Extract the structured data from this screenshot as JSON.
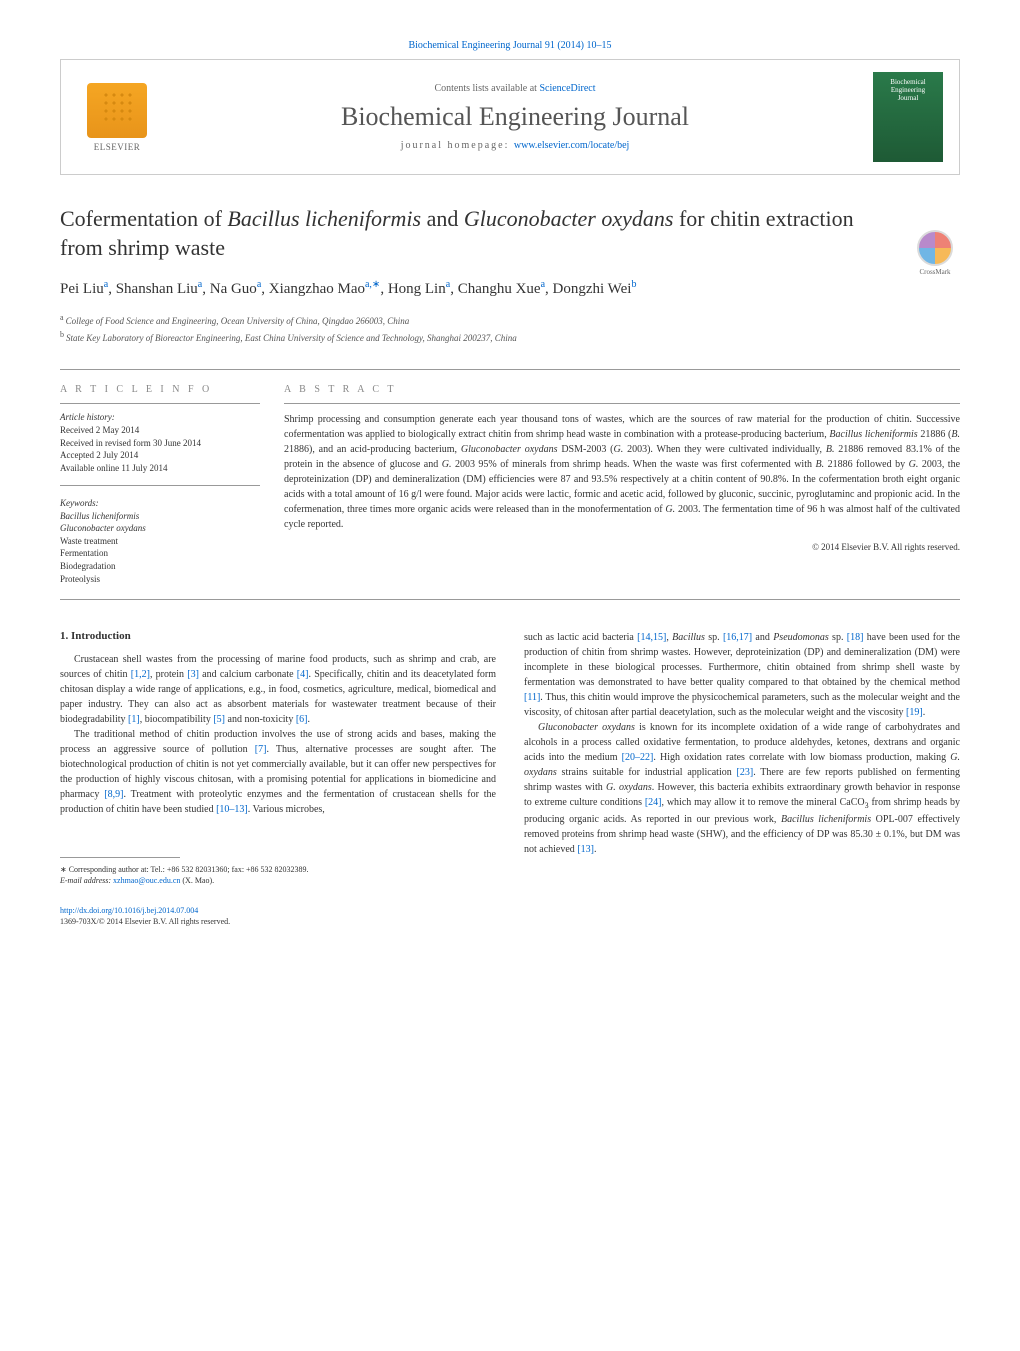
{
  "header": {
    "journal_ref": "Biochemical Engineering Journal 91 (2014) 10–15",
    "contents_prefix": "Contents lists available at ",
    "sciencedirect": "ScienceDirect",
    "journal_name": "Biochemical Engineering Journal",
    "homepage_prefix": "journal homepage: ",
    "homepage_url": "www.elsevier.com/locate/bej",
    "elsevier_label": "ELSEVIER",
    "cover_line1": "Biochemical",
    "cover_line2": "Engineering",
    "cover_line3": "Journal",
    "crossmark": "CrossMark"
  },
  "article": {
    "title_pre": "Cofermentation of ",
    "title_em1": "Bacillus licheniformis",
    "title_mid": " and ",
    "title_em2": "Gluconobacter oxydans",
    "title_post": " for chitin extraction from shrimp waste",
    "authors_html": "Pei Liu|a|, Shanshan Liu|a|, Na Guo|a|, Xiangzhao Mao|a,∗|, Hong Lin|a|, Changhu Xue|a|, Dongzhi Wei|b|",
    "authors": [
      {
        "name": "Pei Liu",
        "sup": "a"
      },
      {
        "name": "Shanshan Liu",
        "sup": "a"
      },
      {
        "name": "Na Guo",
        "sup": "a"
      },
      {
        "name": "Xiangzhao Mao",
        "sup": "a,∗"
      },
      {
        "name": "Hong Lin",
        "sup": "a"
      },
      {
        "name": "Changhu Xue",
        "sup": "a"
      },
      {
        "name": "Dongzhi Wei",
        "sup": "b"
      }
    ],
    "affiliations": [
      {
        "sup": "a",
        "text": "College of Food Science and Engineering, Ocean University of China, Qingdao 266003, China"
      },
      {
        "sup": "b",
        "text": "State Key Laboratory of Bioreactor Engineering, East China University of Science and Technology, Shanghai 200237, China"
      }
    ]
  },
  "info": {
    "heading": "A R T I C L E   I N F O",
    "history_label": "Article history:",
    "received": "Received 2 May 2014",
    "revised": "Received in revised form 30 June 2014",
    "accepted": "Accepted 2 July 2014",
    "online": "Available online 11 July 2014",
    "keywords_label": "Keywords:",
    "keywords": [
      {
        "text": "Bacillus licheniformis",
        "italic": true
      },
      {
        "text": "Gluconobacter oxydans",
        "italic": true
      },
      {
        "text": "Waste treatment",
        "italic": false
      },
      {
        "text": "Fermentation",
        "italic": false
      },
      {
        "text": "Biodegradation",
        "italic": false
      },
      {
        "text": "Proteolysis",
        "italic": false
      }
    ]
  },
  "abstract": {
    "heading": "A B S T R A C T",
    "text_parts": [
      "Shrimp processing and consumption generate each year thousand tons of wastes, which are the sources of raw material for the production of chitin. Successive cofermentation was applied to biologically extract chitin from shrimp head waste in combination with a protease-producing bacterium, ",
      "Bacillus licheniformis",
      " 21886 (",
      "B.",
      " 21886), and an acid-producing bacterium, ",
      "Gluconobacter oxydans",
      " DSM-2003 (",
      "G.",
      " 2003). When they were cultivated individually, ",
      "B.",
      " 21886 removed 83.1% of the protein in the absence of glucose and ",
      "G.",
      " 2003 95% of minerals from shrimp heads. When the waste was first cofermented with ",
      "B.",
      " 21886 followed by ",
      "G.",
      " 2003, the deproteinization (DP) and demineralization (DM) efficiencies were 87 and 93.5% respectively at a chitin content of 90.8%. In the cofermentation broth eight organic acids with a total amount of 16 g/l were found. Major acids were lactic, formic and acetic acid, followed by gluconic, succinic, pyroglutaminc and propionic acid. In the cofermenation, three times more organic acids were released than in the monofermentation of ",
      "G.",
      " 2003. The fermentation time of 96 h was almost half of the cultivated cycle reported."
    ],
    "copyright": "© 2014 Elsevier B.V. All rights reserved."
  },
  "body": {
    "section1_heading": "1. Introduction",
    "col1_paras": [
      "Crustacean shell wastes from the processing of marine food products, such as shrimp and crab, are sources of chitin [1,2], protein [3] and calcium carbonate [4]. Specifically, chitin and its deacetylated form chitosan display a wide range of applications, e.g., in food, cosmetics, agriculture, medical, biomedical and paper industry. They can also act as absorbent materials for wastewater treatment because of their biodegradability [1], biocompatibility [5] and non-toxicity [6].",
      "The traditional method of chitin production involves the use of strong acids and bases, making the process an aggressive source of pollution [7]. Thus, alternative processes are sought after. The biotechnological production of chitin is not yet commercially available, but it can offer new perspectives for the production of highly viscous chitosan, with a promising potential for applications in biomedicine and pharmacy [8,9]. Treatment with proteolytic enzymes and the fermentation of crustacean shells for the production of chitin have been studied [10–13]. Various microbes,"
    ],
    "col2_paras": [
      "such as lactic acid bacteria [14,15], Bacillus sp. [16,17] and Pseudomonas sp. [18] have been used for the production of chitin from shrimp wastes. However, deproteinization (DP) and demineralization (DM) were incomplete in these biological processes. Furthermore, chitin obtained from shrimp shell waste by fermentation was demonstrated to have better quality compared to that obtained by the chemical method [11]. Thus, this chitin would improve the physicochemical parameters, such as the molecular weight and the viscosity, of chitosan after partial deacetylation, such as the molecular weight and the viscosity [19].",
      "Gluconobacter oxydans is known for its incomplete oxidation of a wide range of carbohydrates and alcohols in a process called oxidative fermentation, to produce aldehydes, ketones, dextrans and organic acids into the medium [20–22]. High oxidation rates correlate with low biomass production, making G. oxydans strains suitable for industrial application [23]. There are few reports published on fermenting shrimp wastes with G. oxydans. However, this bacteria exhibits extraordinary growth behavior in response to extreme culture conditions [24], which may allow it to remove the mineral CaCO3 from shrimp heads by producing organic acids. As reported in our previous work, Bacillus licheniformis OPL-007 effectively removed proteins from shrimp head waste (SHW), and the efficiency of DP was 85.30 ± 0.1%, but DM was not achieved [13]."
    ]
  },
  "footnote": {
    "corr_label": "∗ Corresponding author at: Tel.: +86 532 82031360; fax: +86 532 82032389.",
    "email_label": "E-mail address: ",
    "email": "xzhmao@ouc.edu.cn",
    "email_suffix": " (X. Mao)."
  },
  "doi": {
    "url": "http://dx.doi.org/10.1016/j.bej.2014.07.004",
    "issn_line": "1369-703X/© 2014 Elsevier B.V. All rights reserved."
  },
  "citations": {
    "c12": "[1,2]",
    "c3": "[3]",
    "c4": "[4]",
    "c1": "[1]",
    "c5": "[5]",
    "c6": "[6]",
    "c7": "[7]",
    "c89": "[8,9]",
    "c1013": "[10–13]",
    "c1415": "[14,15]",
    "c1617": "[16,17]",
    "c18": "[18]",
    "c11": "[11]",
    "c19": "[19]",
    "c2022": "[20–22]",
    "c23": "[23]",
    "c24": "[24]",
    "c13": "[13]"
  },
  "colors": {
    "link": "#0066cc",
    "text": "#333333",
    "muted": "#666666",
    "border": "#cccccc",
    "elsevier_orange": "#e8941a",
    "cover_green": "#2a7a4a"
  }
}
